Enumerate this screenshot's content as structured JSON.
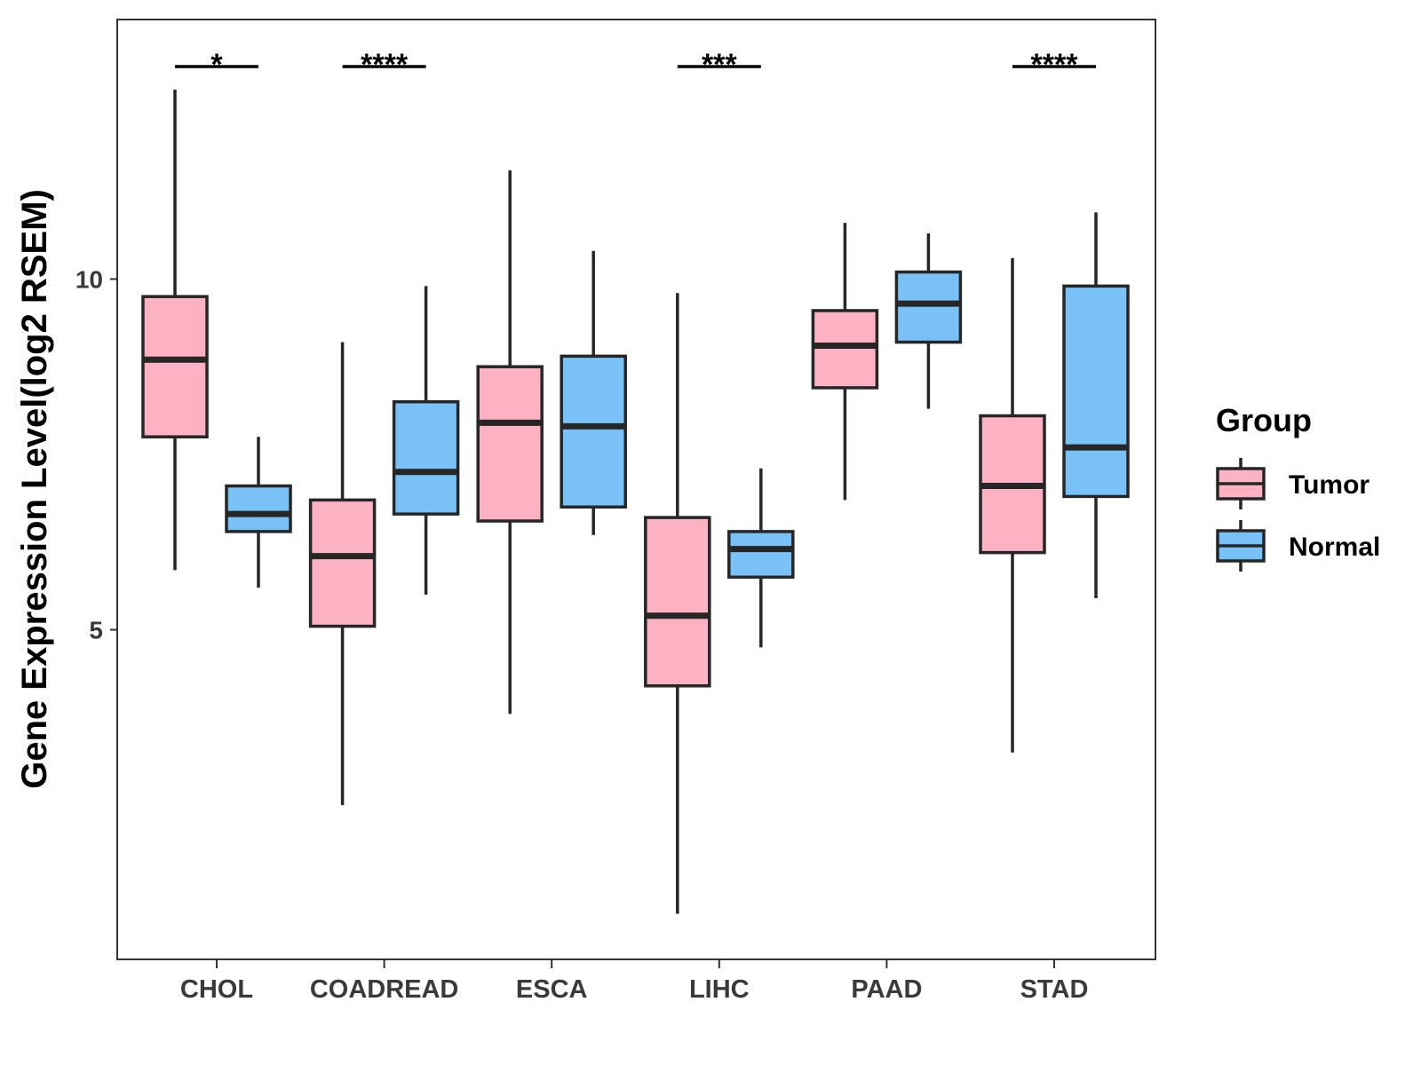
{
  "chart_data": {
    "type": "boxplot",
    "title": "",
    "xlabel": "",
    "ylabel": "Gene Expression Level(log2 RSEM)",
    "ylim": [
      0.3,
      13.7
    ],
    "yticks": [
      5,
      10
    ],
    "grid": false,
    "legend": {
      "title": "Group",
      "position": "right",
      "entries": [
        "Tumor",
        "Normal"
      ]
    },
    "categories": [
      "CHOL",
      "COADREAD",
      "ESCA",
      "LIHC",
      "PAAD",
      "STAD"
    ],
    "series": [
      {
        "name": "Tumor",
        "color": "#FDB2C3",
        "boxes": [
          {
            "min": 5.85,
            "q1": 7.75,
            "median": 8.85,
            "q3": 9.75,
            "max": 12.7
          },
          {
            "min": 2.5,
            "q1": 5.05,
            "median": 6.05,
            "q3": 6.85,
            "max": 9.1
          },
          {
            "min": 3.8,
            "q1": 6.55,
            "median": 7.95,
            "q3": 8.75,
            "max": 11.55
          },
          {
            "min": 0.95,
            "q1": 4.2,
            "median": 5.2,
            "q3": 6.6,
            "max": 9.8
          },
          {
            "min": 6.85,
            "q1": 8.45,
            "median": 9.05,
            "q3": 9.55,
            "max": 10.8
          },
          {
            "min": 3.25,
            "q1": 6.1,
            "median": 7.05,
            "q3": 8.05,
            "max": 10.3
          }
        ]
      },
      {
        "name": "Normal",
        "color": "#79C2F8",
        "boxes": [
          {
            "min": 5.6,
            "q1": 6.4,
            "median": 6.65,
            "q3": 7.05,
            "max": 7.75
          },
          {
            "min": 5.5,
            "q1": 6.65,
            "median": 7.25,
            "q3": 8.25,
            "max": 9.9
          },
          {
            "min": 6.35,
            "q1": 6.75,
            "median": 7.9,
            "q3": 8.9,
            "max": 10.4
          },
          {
            "min": 4.75,
            "q1": 5.75,
            "median": 6.15,
            "q3": 6.4,
            "max": 7.3
          },
          {
            "min": 8.15,
            "q1": 9.1,
            "median": 9.65,
            "q3": 10.1,
            "max": 10.65
          },
          {
            "min": 5.45,
            "q1": 6.9,
            "median": 7.6,
            "q3": 9.9,
            "max": 10.95
          }
        ]
      }
    ],
    "significance": [
      {
        "category": "CHOL",
        "label": "*"
      },
      {
        "category": "COADREAD",
        "label": "****"
      },
      {
        "category": "LIHC",
        "label": "***"
      },
      {
        "category": "STAD",
        "label": "****"
      }
    ]
  }
}
